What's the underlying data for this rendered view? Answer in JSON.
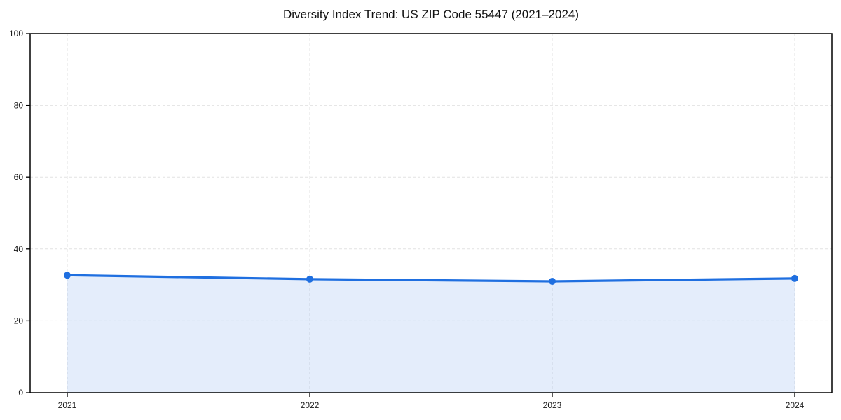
{
  "chart_data": {
    "type": "area",
    "title": "Diversity Index Trend: US ZIP Code 55447 (2021–2024)",
    "categories": [
      "2021",
      "2022",
      "2023",
      "2024"
    ],
    "series": [
      {
        "name": "Diversity Index",
        "values": [
          32.7,
          31.6,
          31.0,
          31.8
        ]
      }
    ],
    "xlabel": "",
    "ylabel": "",
    "ylim": [
      0,
      100
    ],
    "yticks": [
      0,
      20,
      40,
      60,
      80,
      100
    ],
    "grid": "dashed-both-axes",
    "legend_position": "none",
    "colors": {
      "line": "#1f6fe0",
      "marker": "#1f6fe0",
      "fill": "#1f6fe0",
      "fill_opacity": 0.12,
      "gridline": "#e2e2e2",
      "axis": "#000000",
      "text": "#1a1a1a"
    }
  }
}
